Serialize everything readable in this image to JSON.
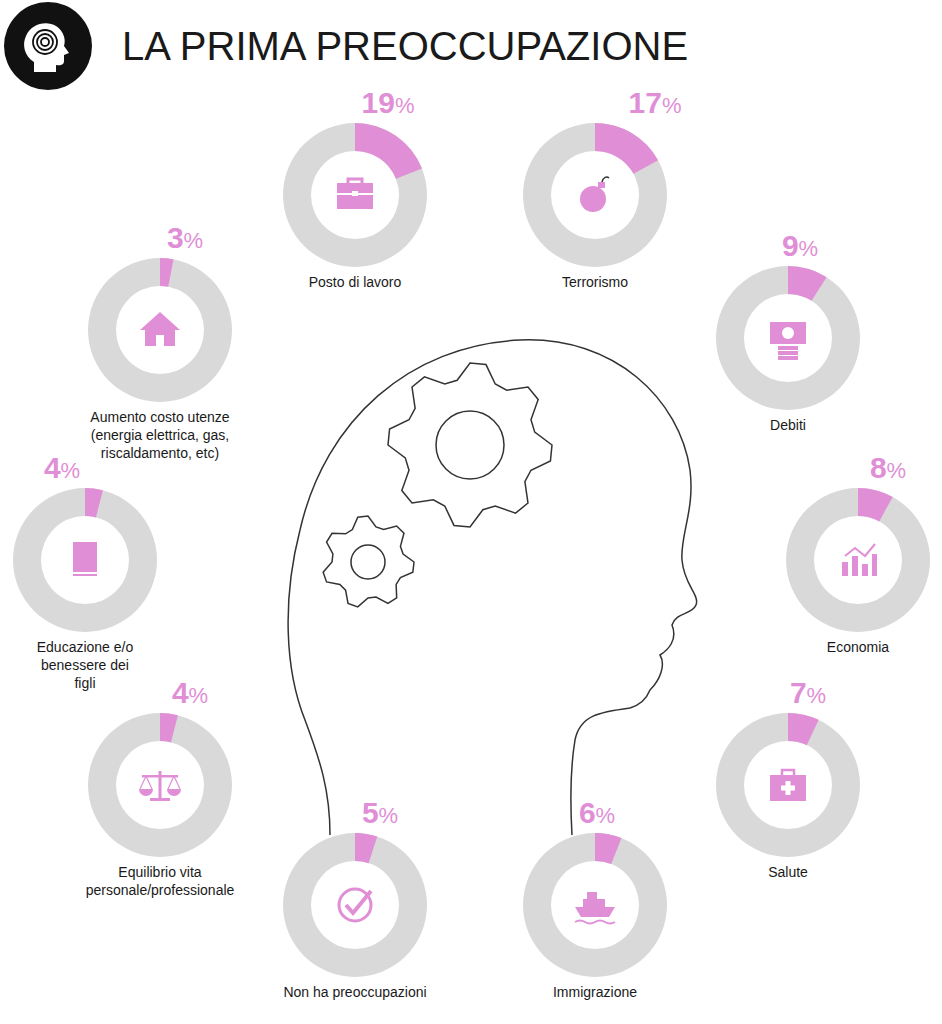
{
  "chart_data": {
    "type": "donut",
    "title": "LA PRIMA PREOCCUPAZIONE",
    "categories": [
      "Posto di lavoro",
      "Terrorismo",
      "Debiti",
      "Economia",
      "Salute",
      "Immigrazione",
      "Non ha preoccupazioni",
      "Equilibrio vita personale/professionale",
      "Educazione e/o benessere dei figli",
      "Aumento costo utenze (energia elettrica, gas, riscaldamento, etc)"
    ],
    "values": [
      19,
      17,
      9,
      8,
      7,
      6,
      5,
      4,
      4,
      3
    ],
    "value_labels": [
      "19%",
      "17%",
      "9%",
      "8%",
      "7%",
      "6%",
      "5%",
      "4%",
      "4%",
      "3%"
    ],
    "color": "#e08fd6",
    "ylim": [
      0,
      100
    ],
    "data_labels": true
  }
}
